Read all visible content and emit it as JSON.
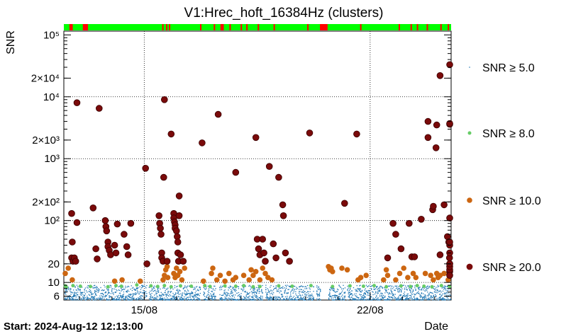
{
  "chart_data": {
    "type": "scatter",
    "title": "V1:Hrec_hoft_16384Hz (clusters)",
    "ylabel": "SNR",
    "xlabel": "Date",
    "footer": "Start: 2024-Aug-12 12:13:00",
    "y_scale": "log",
    "ylim": [
      5.2,
      115000
    ],
    "xlim": [
      "2024-08-12 12:13",
      "2024-08-24 12:13"
    ],
    "grid": true,
    "x_ticks": [
      {
        "label": "15/08",
        "date": "2024-08-15 00:00"
      },
      {
        "label": "22/08",
        "date": "2024-08-22 00:00"
      }
    ],
    "y_ticks": [
      {
        "label": "6",
        "value": 6
      },
      {
        "label": "10",
        "value": 10
      },
      {
        "label": "20",
        "value": 20
      },
      {
        "label": "10²",
        "value": 100
      },
      {
        "label": "2×10²",
        "value": 200
      },
      {
        "label": "10³",
        "value": 1000
      },
      {
        "label": "2×10³",
        "value": 2000
      },
      {
        "label": "10⁴",
        "value": 10000
      },
      {
        "label": "2×10⁴",
        "value": 20000
      },
      {
        "label": "10⁵",
        "value": 100000
      }
    ],
    "legend_position": "right",
    "status_bar": {
      "colors": {
        "ok": "#00ff00",
        "bad": "#ff0000"
      },
      "bad_segments": [
        [
          "2024-08-12 16:20",
          "2024-08-12 18:50"
        ],
        [
          "2024-08-13 02:20",
          "2024-08-13 06:10"
        ],
        [
          "2024-08-15 13:20",
          "2024-08-15 14:10"
        ],
        [
          "2024-08-15 16:10",
          "2024-08-15 17:00"
        ],
        [
          "2024-08-15 18:20",
          "2024-08-15 19:10"
        ],
        [
          "2024-08-16 17:30",
          "2024-08-16 18:20"
        ],
        [
          "2024-08-17 03:40",
          "2024-08-17 04:30"
        ],
        [
          "2024-08-17 08:40",
          "2024-08-17 11:10"
        ],
        [
          "2024-08-17 15:20",
          "2024-08-17 16:10"
        ],
        [
          "2024-08-17 23:40",
          "2024-08-18 00:30"
        ],
        [
          "2024-08-18 03:50",
          "2024-08-18 04:40"
        ],
        [
          "2024-08-18 12:20",
          "2024-08-18 13:10"
        ],
        [
          "2024-08-19 00:10",
          "2024-08-19 01:00"
        ],
        [
          "2024-08-20 01:10",
          "2024-08-20 01:55"
        ],
        [
          "2024-08-20 10:40",
          "2024-08-20 16:20"
        ],
        [
          "2024-08-21 16:30",
          "2024-08-21 17:10"
        ],
        [
          "2024-08-22 21:10",
          "2024-08-22 22:00"
        ],
        [
          "2024-08-23 06:00",
          "2024-08-23 06:50"
        ],
        [
          "2024-08-23 10:40",
          "2024-08-23 11:30"
        ],
        [
          "2024-08-23 18:00",
          "2024-08-23 18:50"
        ],
        [
          "2024-08-24 04:10",
          "2024-08-24 04:55"
        ],
        [
          "2024-08-24 09:40",
          "2024-08-24 10:40"
        ]
      ]
    },
    "series": [
      {
        "name": "SNR ≥ 5.0",
        "color": "#1f77b4",
        "style": "dense-dots",
        "y_range": [
          5.3,
          9.2
        ],
        "gaps": [
          [
            "2024-08-15 02:00",
            "2024-08-15 03:10"
          ],
          [
            "2024-08-16 18:00",
            "2024-08-16 19:30"
          ],
          [
            "2024-08-17 05:00",
            "2024-08-17 07:30"
          ],
          [
            "2024-08-18 16:00",
            "2024-08-18 18:00"
          ],
          [
            "2024-08-20 06:00",
            "2024-08-20 08:00"
          ],
          [
            "2024-08-20 11:00",
            "2024-08-20 16:30"
          ],
          [
            "2024-08-21 05:00",
            "2024-08-21 06:30"
          ]
        ]
      },
      {
        "name": "SNR ≥ 8.0",
        "color": "#66cc66",
        "points": [
          [
            "2024-08-12 12:30",
            8.8
          ],
          [
            "2024-08-12 14:00",
            8.4
          ],
          [
            "2024-08-12 19:00",
            8.9
          ],
          [
            "2024-08-13 00:30",
            8.7
          ],
          [
            "2024-08-13 08:00",
            8.6
          ],
          [
            "2024-08-13 21:00",
            8.5
          ],
          [
            "2024-08-14 03:00",
            8.9
          ],
          [
            "2024-08-14 07:00",
            8.7
          ],
          [
            "2024-08-14 18:30",
            9.1
          ],
          [
            "2024-08-15 05:00",
            8.8
          ],
          [
            "2024-08-15 10:00",
            8.6
          ],
          [
            "2024-08-15 15:00",
            8.9
          ],
          [
            "2024-08-15 20:00",
            8.5
          ],
          [
            "2024-08-16 03:00",
            8.8
          ],
          [
            "2024-08-16 11:00",
            8.7
          ],
          [
            "2024-08-16 21:00",
            8.9
          ],
          [
            "2024-08-17 01:00",
            8.6
          ],
          [
            "2024-08-17 12:00",
            8.8
          ],
          [
            "2024-08-17 20:00",
            8.7
          ],
          [
            "2024-08-18 02:00",
            8.9
          ],
          [
            "2024-08-18 09:00",
            8.5
          ],
          [
            "2024-08-18 14:00",
            8.6
          ],
          [
            "2024-08-19 04:00",
            8.8
          ],
          [
            "2024-08-19 14:00",
            8.7
          ],
          [
            "2024-08-20 04:00",
            8.9
          ],
          [
            "2024-08-20 20:00",
            8.6
          ],
          [
            "2024-08-21 09:00",
            8.8
          ],
          [
            "2024-08-21 19:00",
            8.7
          ],
          [
            "2024-08-22 03:00",
            8.9
          ],
          [
            "2024-08-22 12:00",
            8.5
          ],
          [
            "2024-08-22 23:00",
            8.8
          ],
          [
            "2024-08-23 06:00",
            8.6
          ],
          [
            "2024-08-23 11:00",
            8.9
          ],
          [
            "2024-08-23 16:00",
            8.7
          ],
          [
            "2024-08-23 22:00",
            8.5
          ],
          [
            "2024-08-24 05:00",
            8.9
          ],
          [
            "2024-08-24 11:00",
            8.6
          ]
        ]
      },
      {
        "name": "SNR ≥ 10.0",
        "color": "#cc6611",
        "points": [
          [
            "2024-08-12 13:00",
            14
          ],
          [
            "2024-08-12 15:30",
            17
          ],
          [
            "2024-08-12 18:30",
            11
          ],
          [
            "2024-08-14 02:00",
            10.5
          ],
          [
            "2024-08-14 07:30",
            11
          ],
          [
            "2024-08-14 21:00",
            10.5
          ],
          [
            "2024-08-15 14:00",
            11
          ],
          [
            "2024-08-15 15:00",
            13
          ],
          [
            "2024-08-15 16:00",
            16
          ],
          [
            "2024-08-15 17:00",
            18
          ],
          [
            "2024-08-15 17:30",
            12
          ],
          [
            "2024-08-15 22:00",
            14
          ],
          [
            "2024-08-15 23:00",
            12
          ],
          [
            "2024-08-16 00:00",
            17
          ],
          [
            "2024-08-16 01:00",
            13
          ],
          [
            "2024-08-16 02:30",
            15
          ],
          [
            "2024-08-16 04:00",
            11
          ],
          [
            "2024-08-16 06:00",
            17
          ],
          [
            "2024-08-16 20:00",
            10.5
          ],
          [
            "2024-08-17 02:00",
            14
          ],
          [
            "2024-08-17 03:00",
            17
          ],
          [
            "2024-08-17 06:00",
            11
          ],
          [
            "2024-08-17 08:30",
            13
          ],
          [
            "2024-08-17 12:00",
            10.5
          ],
          [
            "2024-08-17 15:00",
            14
          ],
          [
            "2024-08-17 18:00",
            11
          ],
          [
            "2024-08-17 20:00",
            12
          ],
          [
            "2024-08-18 02:00",
            13
          ],
          [
            "2024-08-18 06:00",
            11
          ],
          [
            "2024-08-18 07:30",
            16
          ],
          [
            "2024-08-18 09:00",
            13
          ],
          [
            "2024-08-18 11:00",
            15
          ],
          [
            "2024-08-18 14:00",
            11
          ],
          [
            "2024-08-18 16:00",
            17
          ],
          [
            "2024-08-18 18:00",
            14
          ],
          [
            "2024-08-18 20:00",
            12
          ],
          [
            "2024-08-18 23:00",
            11
          ],
          [
            "2024-08-20 17:00",
            18
          ],
          [
            "2024-08-20 18:00",
            16
          ],
          [
            "2024-08-20 19:00",
            17
          ],
          [
            "2024-08-20 20:00",
            15
          ],
          [
            "2024-08-21 03:00",
            17
          ],
          [
            "2024-08-21 07:00",
            16
          ],
          [
            "2024-08-21 15:00",
            11
          ],
          [
            "2024-08-21 17:00",
            12
          ],
          [
            "2024-08-21 21:00",
            13
          ],
          [
            "2024-08-22 10:00",
            11
          ],
          [
            "2024-08-22 12:00",
            16
          ],
          [
            "2024-08-22 13:00",
            13
          ],
          [
            "2024-08-22 19:00",
            11
          ],
          [
            "2024-08-22 22:00",
            14
          ],
          [
            "2024-08-23 01:00",
            17
          ],
          [
            "2024-08-23 04:00",
            12
          ],
          [
            "2024-08-23 08:00",
            14
          ],
          [
            "2024-08-23 10:00",
            12
          ],
          [
            "2024-08-23 17:00",
            14
          ],
          [
            "2024-08-23 21:00",
            13
          ],
          [
            "2024-08-23 23:00",
            11
          ],
          [
            "2024-08-24 01:30",
            14
          ],
          [
            "2024-08-24 02:30",
            12
          ],
          [
            "2024-08-24 04:00",
            13
          ],
          [
            "2024-08-24 07:00",
            14
          ],
          [
            "2024-08-24 10:00",
            11
          ]
        ]
      },
      {
        "name": "SNR ≥ 20.0",
        "color": "#7a0a0a",
        "points": [
          [
            "2024-08-12 18:00",
            130
          ],
          [
            "2024-08-12 18:30",
            45
          ],
          [
            "2024-08-12 18:00",
            25
          ],
          [
            "2024-08-12 19:00",
            22
          ],
          [
            "2024-08-12 20:00",
            25
          ],
          [
            "2024-08-12 21:00",
            22
          ],
          [
            "2024-08-12 22:00",
            93
          ],
          [
            "2024-08-12 22:00",
            8000
          ],
          [
            "2024-08-13 10:00",
            160
          ],
          [
            "2024-08-13 12:00",
            35
          ],
          [
            "2024-08-13 13:00",
            24
          ],
          [
            "2024-08-13 14:30",
            6500
          ],
          [
            "2024-08-13 19:00",
            100
          ],
          [
            "2024-08-13 19:30",
            80
          ],
          [
            "2024-08-13 20:00",
            68
          ],
          [
            "2024-08-13 21:00",
            45
          ],
          [
            "2024-08-13 21:00",
            38
          ],
          [
            "2024-08-13 22:00",
            33
          ],
          [
            "2024-08-13 23:00",
            28
          ],
          [
            "2024-08-14 02:00",
            40
          ],
          [
            "2024-08-14 03:00",
            30
          ],
          [
            "2024-08-14 04:00",
            88
          ],
          [
            "2024-08-14 09:00",
            60
          ],
          [
            "2024-08-14 11:00",
            38
          ],
          [
            "2024-08-14 12:00",
            28
          ],
          [
            "2024-08-14 14:00",
            90
          ],
          [
            "2024-08-15 01:00",
            700
          ],
          [
            "2024-08-15 02:00",
            20
          ],
          [
            "2024-08-15 11:00",
            120
          ],
          [
            "2024-08-15 11:30",
            90
          ],
          [
            "2024-08-15 12:00",
            75
          ],
          [
            "2024-08-15 12:30",
            60
          ],
          [
            "2024-08-15 13:00",
            30
          ],
          [
            "2024-08-15 13:00",
            25
          ],
          [
            "2024-08-15 14:00",
            22
          ],
          [
            "2024-08-15 14:30",
            500
          ],
          [
            "2024-08-15 15:00",
            9000
          ],
          [
            "2024-08-15 17:00",
            22
          ],
          [
            "2024-08-15 20:00",
            2500
          ],
          [
            "2024-08-15 22:00",
            130
          ],
          [
            "2024-08-15 22:00",
            110
          ],
          [
            "2024-08-15 22:30",
            95
          ],
          [
            "2024-08-15 23:00",
            85
          ],
          [
            "2024-08-15 23:00",
            75
          ],
          [
            "2024-08-16 00:00",
            68
          ],
          [
            "2024-08-16 00:30",
            55
          ],
          [
            "2024-08-16 01:00",
            45
          ],
          [
            "2024-08-16 01:00",
            30
          ],
          [
            "2024-08-16 01:30",
            22
          ],
          [
            "2024-08-16 02:00",
            250
          ],
          [
            "2024-08-16 02:00",
            120
          ],
          [
            "2024-08-16 03:00",
            28
          ],
          [
            "2024-08-16 05:00",
            22
          ],
          [
            "2024-08-16 19:00",
            1800
          ],
          [
            "2024-08-17 07:00",
            5200
          ],
          [
            "2024-08-17 20:00",
            600
          ],
          [
            "2024-08-18 11:00",
            2200
          ],
          [
            "2024-08-18 12:00",
            50
          ],
          [
            "2024-08-18 13:00",
            35
          ],
          [
            "2024-08-18 14:00",
            28
          ],
          [
            "2024-08-18 16:00",
            50
          ],
          [
            "2024-08-18 17:00",
            30
          ],
          [
            "2024-08-18 18:00",
            22
          ],
          [
            "2024-08-18 21:00",
            750
          ],
          [
            "2024-08-19 00:00",
            42
          ],
          [
            "2024-08-19 02:00",
            25
          ],
          [
            "2024-08-19 04:00",
            500
          ],
          [
            "2024-08-19 07:00",
            180
          ],
          [
            "2024-08-19 07:30",
            120
          ],
          [
            "2024-08-19 09:00",
            30
          ],
          [
            "2024-08-19 12:00",
            22
          ],
          [
            "2024-08-20 03:00",
            2600
          ],
          [
            "2024-08-21 05:00",
            190
          ],
          [
            "2024-08-21 14:00",
            2500
          ],
          [
            "2024-08-22 13:00",
            25
          ],
          [
            "2024-08-22 17:00",
            90
          ],
          [
            "2024-08-22 19:00",
            60
          ],
          [
            "2024-08-22 23:00",
            35
          ],
          [
            "2024-08-23 05:00",
            90
          ],
          [
            "2024-08-23 07:00",
            26
          ],
          [
            "2024-08-23 09:00",
            26
          ],
          [
            "2024-08-23 14:00",
            105
          ],
          [
            "2024-08-23 19:00",
            4000
          ],
          [
            "2024-08-23 19:00",
            2200
          ],
          [
            "2024-08-23 22:30",
            150
          ],
          [
            "2024-08-23 23:00",
            170
          ],
          [
            "2024-08-24 01:00",
            1500
          ],
          [
            "2024-08-24 01:30",
            3500
          ],
          [
            "2024-08-24 04:00",
            22000
          ],
          [
            "2024-08-24 04:00",
            28
          ],
          [
            "2024-08-24 07:00",
            180
          ],
          [
            "2024-08-24 09:30",
            55
          ],
          [
            "2024-08-24 10:30",
            45
          ],
          [
            "2024-08-24 11:00",
            25
          ],
          [
            "2024-08-24 11:30",
            20
          ],
          [
            "2024-08-24 12:00",
            15
          ],
          [
            "2024-08-24 13:00",
            3600
          ],
          [
            "2024-08-24 14:00",
            110
          ],
          [
            "2024-08-24 15:00",
            16
          ],
          [
            "2024-08-24 15:30",
            18
          ],
          [
            "2024-08-24 17:00",
            33000
          ],
          [
            "2024-08-24 19:00",
            30
          ],
          [
            "2024-08-24 20:00",
            3700
          ],
          [
            "2024-08-24 21:00",
            40
          ],
          [
            "2024-08-24 23:00",
            13
          ],
          [
            "2024-08-25 00:30",
            45
          ],
          [
            "2024-08-25 00:30",
            20
          ]
        ]
      }
    ]
  }
}
